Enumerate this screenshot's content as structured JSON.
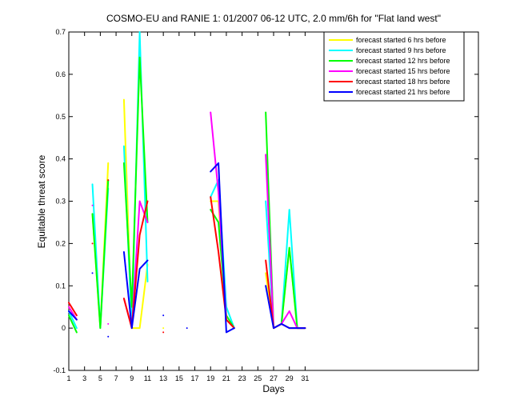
{
  "chart_data": {
    "type": "line",
    "title": "COSMO-EU and RANIE 1: 01/2007 06-12 UTC, 2.0 mm/6h for \"Flat land west\"",
    "x_label": "Days",
    "y_label": "Equitable threat score",
    "x": [
      1,
      2,
      3,
      4,
      5,
      6,
      7,
      8,
      9,
      10,
      11,
      12,
      13,
      14,
      15,
      16,
      17,
      18,
      19,
      20,
      21,
      22,
      23,
      24,
      25,
      26,
      27,
      28,
      29,
      30,
      31
    ],
    "xlim": [
      1,
      53
    ],
    "xticks": [
      1,
      3,
      5,
      7,
      9,
      11,
      13,
      15,
      17,
      19,
      21,
      23,
      25,
      27,
      29,
      31
    ],
    "ylim": [
      -0.1,
      0.7
    ],
    "yticks": [
      -0.1,
      0,
      0.1,
      0.2,
      0.3,
      0.4,
      0.5,
      0.6,
      0.7
    ],
    "legend": "upper right",
    "series": [
      {
        "name": "forecast started 6 hrs before",
        "color": "#ffff00",
        "values": [
          0.05,
          0.02,
          null,
          0.27,
          0.0,
          0.39,
          null,
          0.54,
          0.0,
          0.0,
          0.15,
          null,
          0.0,
          null,
          null,
          null,
          null,
          null,
          0.3,
          0.3,
          0.02,
          0.0,
          null,
          null,
          null,
          0.13,
          0.0,
          0.01,
          0.19,
          0.0,
          0.0
        ]
      },
      {
        "name": "forecast started 9 hrs before",
        "color": "#00ffff",
        "values": [
          0.04,
          0.0,
          null,
          0.34,
          0.0,
          0.33,
          null,
          0.43,
          0.0,
          0.7,
          0.11,
          null,
          null,
          null,
          null,
          null,
          null,
          null,
          0.31,
          0.35,
          0.05,
          0.0,
          null,
          null,
          null,
          0.3,
          0.0,
          0.01,
          0.28,
          0.0,
          0.0
        ]
      },
      {
        "name": "forecast started 12 hrs before",
        "color": "#00ff00",
        "values": [
          0.03,
          -0.01,
          null,
          0.27,
          0.0,
          0.35,
          null,
          0.39,
          0.05,
          0.64,
          0.25,
          null,
          null,
          null,
          null,
          null,
          null,
          null,
          0.28,
          0.25,
          0.03,
          0.0,
          null,
          null,
          null,
          0.51,
          0.0,
          0.01,
          0.19,
          0.0,
          0.0
        ]
      },
      {
        "name": "forecast started 15 hrs before",
        "color": "#ff00ff",
        "values": [
          0.05,
          0.02,
          null,
          0.29,
          null,
          0.01,
          null,
          0.07,
          0.0,
          0.3,
          0.25,
          null,
          null,
          null,
          null,
          null,
          null,
          null,
          0.51,
          0.32,
          0.02,
          0.0,
          null,
          null,
          null,
          0.41,
          0.0,
          0.01,
          0.04,
          0.0,
          0.0
        ]
      },
      {
        "name": "forecast started 18 hrs before",
        "color": "#ff0000",
        "values": [
          0.06,
          0.03,
          null,
          0.2,
          null,
          0.35,
          null,
          0.07,
          0.0,
          0.22,
          0.3,
          null,
          -0.01,
          null,
          null,
          null,
          null,
          null,
          0.31,
          0.18,
          0.02,
          0.0,
          null,
          null,
          null,
          0.16,
          0.0,
          0.01,
          0.0,
          0.0,
          0.0
        ]
      },
      {
        "name": "forecast started 21 hrs before",
        "color": "#0000ff",
        "values": [
          0.04,
          0.02,
          null,
          0.13,
          null,
          -0.02,
          null,
          0.18,
          0.0,
          0.14,
          0.16,
          null,
          0.03,
          null,
          null,
          0.0,
          null,
          null,
          0.37,
          0.39,
          -0.01,
          0.0,
          null,
          null,
          null,
          0.1,
          0.0,
          0.01,
          0.0,
          0.0,
          0.0
        ]
      }
    ]
  }
}
